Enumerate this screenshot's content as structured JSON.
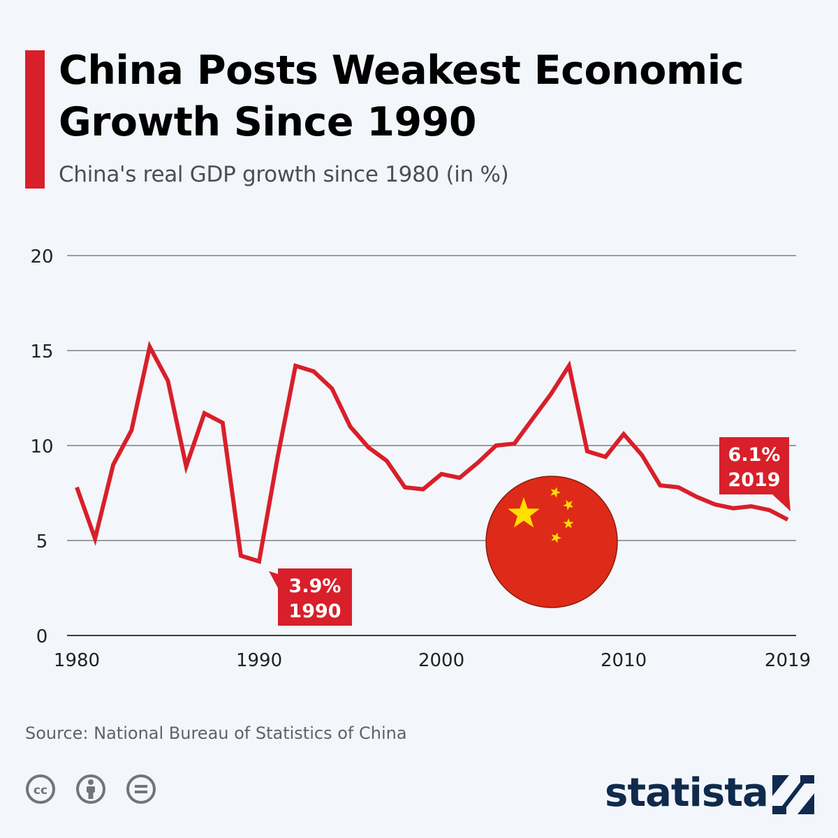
{
  "header": {
    "title": "China Posts Weakest Economic Growth Since 1990",
    "subtitle": "China's real GDP growth since 1980 (in %)"
  },
  "footer": {
    "source": "Source: National Bureau of Statistics of China",
    "brand": "statista",
    "license_icons": [
      "cc-icon",
      "attribution-icon",
      "no-derivatives-icon"
    ]
  },
  "colors": {
    "accent": "#d81f2a",
    "line": "#d81f2a",
    "flag_red": "#de2a18",
    "flag_star": "#ffde00",
    "brand_navy": "#0f2a4d"
  },
  "chart_data": {
    "type": "line",
    "title": "China Posts Weakest Economic Growth Since 1990",
    "subtitle": "China's real GDP growth since 1980 (in %)",
    "xlabel": "",
    "ylabel": "",
    "xlim": [
      1980,
      2019
    ],
    "ylim": [
      0,
      20
    ],
    "yticks": [
      "0",
      "5",
      "10",
      "15",
      "20"
    ],
    "xticks": [
      "1980",
      "1990",
      "2000",
      "2010",
      "2019"
    ],
    "grid": true,
    "series": [
      {
        "name": "Real GDP growth (%)",
        "x": [
          1980,
          1981,
          1982,
          1983,
          1984,
          1985,
          1986,
          1987,
          1988,
          1989,
          1990,
          1991,
          1992,
          1993,
          1994,
          1995,
          1996,
          1997,
          1998,
          1999,
          2000,
          2001,
          2002,
          2003,
          2004,
          2005,
          2006,
          2007,
          2008,
          2009,
          2010,
          2011,
          2012,
          2013,
          2014,
          2015,
          2016,
          2017,
          2018,
          2019
        ],
        "values": [
          7.8,
          5.1,
          9.0,
          10.8,
          15.2,
          13.4,
          8.9,
          11.7,
          11.2,
          4.2,
          3.9,
          9.3,
          14.2,
          13.9,
          13.0,
          11.0,
          9.9,
          9.2,
          7.8,
          7.7,
          8.5,
          8.3,
          9.1,
          10.0,
          10.1,
          11.4,
          12.7,
          14.2,
          9.7,
          9.4,
          10.6,
          9.5,
          7.9,
          7.8,
          7.3,
          6.9,
          6.7,
          6.8,
          6.6,
          6.1
        ]
      }
    ],
    "annotations": [
      {
        "value_label": "3.9%",
        "year_label": "1990",
        "x": 1990,
        "y": 3.9
      },
      {
        "value_label": "6.1%",
        "year_label": "2019",
        "x": 2019,
        "y": 6.1
      }
    ]
  }
}
